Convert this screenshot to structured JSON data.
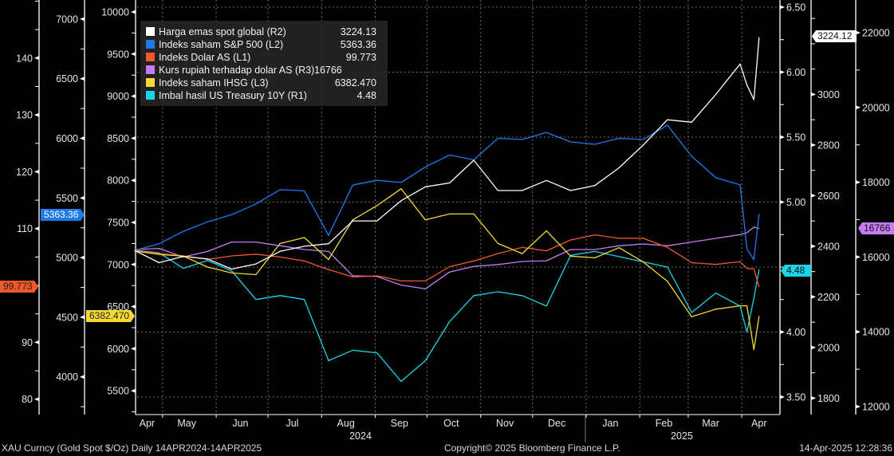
{
  "chart_data": {
    "type": "line",
    "title": "XAU Curncy (Gold Spot $/Oz) Daily 14APR2024-14APR2025",
    "x": [
      "2024-04-15",
      "2024-04-29",
      "2024-05-13",
      "2024-05-27",
      "2024-06-10",
      "2024-06-24",
      "2024-07-08",
      "2024-07-22",
      "2024-08-05",
      "2024-08-19",
      "2024-09-02",
      "2024-09-16",
      "2024-09-30",
      "2024-10-14",
      "2024-10-28",
      "2024-11-11",
      "2024-11-25",
      "2024-12-09",
      "2024-12-23",
      "2025-01-06",
      "2025-01-20",
      "2025-02-03",
      "2025-02-17",
      "2025-03-03",
      "2025-03-17",
      "2025-03-31",
      "2025-04-04",
      "2025-04-08",
      "2025-04-11"
    ],
    "xlim": [
      "2024-04-14",
      "2025-04-14"
    ],
    "x_ticks": [
      "Apr",
      "May",
      "Jun",
      "Jul",
      "Aug",
      "Sep",
      "Oct",
      "Nov",
      "Dec",
      "Jan",
      "Feb",
      "Mar",
      "Apr"
    ],
    "x_years": [
      "2024",
      "2025"
    ],
    "grid": true,
    "legend_placement": "top-left",
    "series": [
      {
        "name": "Harga emas spot global (R2)",
        "axis": "R2",
        "color": "#ffffff",
        "last": "3224.13",
        "tag": "3224.12",
        "values": [
          2383,
          2335,
          2360,
          2350,
          2310,
          2330,
          2380,
          2400,
          2410,
          2500,
          2500,
          2580,
          2635,
          2650,
          2740,
          2620,
          2620,
          2660,
          2620,
          2640,
          2710,
          2800,
          2900,
          2890,
          3000,
          3120,
          3037,
          2980,
          3224.13
        ]
      },
      {
        "name": "Indeks saham S&P 500 (L2)",
        "axis": "L2",
        "color": "#2079ea",
        "last": "5363.36",
        "tag": "5363.36",
        "values": [
          5061,
          5116,
          5221,
          5300,
          5360,
          5450,
          5570,
          5560,
          5186,
          5608,
          5648,
          5630,
          5760,
          5860,
          5820,
          6000,
          5990,
          6050,
          5970,
          5950,
          6000,
          5990,
          6110,
          5850,
          5670,
          5610,
          5074,
          4982,
          5363.36
        ]
      },
      {
        "name": "Indeks Dolar AS (L1)",
        "axis": "L1",
        "color": "#f2582c",
        "last": "99.773",
        "tag": "99.773",
        "values": [
          106.2,
          105.6,
          105.2,
          104.6,
          105.2,
          105.5,
          105.0,
          104.3,
          102.8,
          101.5,
          101.7,
          100.8,
          100.8,
          103.3,
          104.3,
          105.6,
          106.7,
          106.1,
          108.0,
          108.9,
          108.3,
          108.3,
          106.7,
          104.0,
          103.7,
          104.2,
          103.0,
          102.9,
          99.773
        ]
      },
      {
        "name": "Kurs rupiah terhadap dolar AS (R3)",
        "axis": "R3",
        "color": "#c57cf2",
        "last": "16766",
        "tag": "16766",
        "values": [
          16200,
          16230,
          16000,
          16150,
          16400,
          16400,
          16300,
          16200,
          16150,
          15500,
          15480,
          15250,
          15150,
          15600,
          15750,
          15800,
          15880,
          15900,
          16200,
          16200,
          16300,
          16350,
          16300,
          16400,
          16500,
          16600,
          16650,
          16800,
          16766
        ]
      },
      {
        "name": "Indeks saham IHSG (L3)",
        "axis": "L3",
        "color": "#f6d832",
        "last": "6382.470",
        "tag": "6382.470",
        "values": [
          7160,
          7120,
          7100,
          6970,
          6900,
          6880,
          7250,
          7320,
          7060,
          7530,
          7700,
          7900,
          7530,
          7600,
          7600,
          7250,
          7130,
          7400,
          7100,
          7080,
          7200,
          7030,
          6800,
          6380,
          6470,
          6510,
          6510,
          5990,
          6382.47
        ]
      },
      {
        "name": "Imbal hasil US Treasury 10Y (R1)",
        "axis": "R1",
        "color": "#1ad3e8",
        "last": "4.48",
        "tag": "4.48",
        "values": [
          4.63,
          4.61,
          4.49,
          4.55,
          4.47,
          4.25,
          4.28,
          4.25,
          3.78,
          3.86,
          3.84,
          3.62,
          3.78,
          4.08,
          4.28,
          4.31,
          4.28,
          4.2,
          4.59,
          4.62,
          4.58,
          4.54,
          4.5,
          4.15,
          4.3,
          4.2,
          4.0,
          4.26,
          4.48
        ]
      }
    ],
    "axes": {
      "L1": {
        "ylim": [
          77.3,
          150.2
        ],
        "ticks": [
          80,
          90,
          110,
          120,
          130,
          140
        ],
        "labels": [
          "80",
          "90",
          "110",
          "120",
          "130",
          "140"
        ]
      },
      "L2": {
        "ylim": [
          3684,
          7160
        ],
        "ticks": [
          4000,
          4500,
          5000,
          5500,
          6000,
          6500,
          7000
        ],
        "labels": [
          "4000",
          "4500",
          "5000",
          "5500",
          "6000",
          "6500",
          "7000"
        ]
      },
      "L3": {
        "ylim": [
          5218,
          10142
        ],
        "ticks": [
          5500,
          6000,
          6500,
          7000,
          7500,
          8000,
          8500,
          9000,
          9500,
          10000
        ],
        "labels": [
          "5500",
          "6000",
          "6500",
          "7000",
          "7500",
          "8000",
          "8500",
          "9000",
          "9500",
          "10000"
        ]
      },
      "R1": {
        "ylim": [
          3.365,
          6.555
        ],
        "ticks": [
          3.5,
          4.0,
          5.0,
          5.5,
          6.0,
          6.5
        ],
        "labels": [
          "3.50",
          "4.00",
          "5.00",
          "5.50",
          "6.00",
          "6.50"
        ]
      },
      "R2": {
        "ylim": [
          1735,
          3373
        ],
        "ticks": [
          1800,
          2000,
          2200,
          2400,
          2600,
          2800,
          3000
        ],
        "labels": [
          "1800",
          "2000",
          "2200",
          "2400",
          "2600",
          "2800",
          "3000"
        ]
      },
      "R3": {
        "ylim": [
          11787,
          22874
        ],
        "ticks": [
          12000,
          14000,
          16000,
          18000,
          20000,
          22000
        ],
        "labels": [
          "12000",
          "14000",
          "16000",
          "18000",
          "20000",
          "22000"
        ]
      }
    }
  },
  "footer": {
    "left": "XAU Curncy (Gold Spot  $/Oz)  Daily 14APR2024-14APR2025",
    "center": "Copyright© 2025 Bloomberg Finance L.P.",
    "right": "14-Apr-2025 12:28:36"
  }
}
